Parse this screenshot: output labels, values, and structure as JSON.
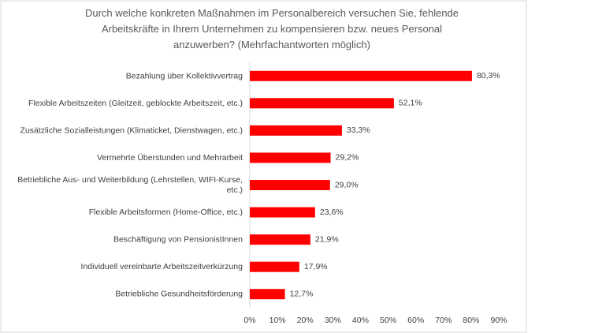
{
  "chart_data": {
    "type": "bar",
    "orientation": "horizontal",
    "title": "Durch welche konkreten Maßnahmen im Personalbereich versuchen Sie, fehlende Arbeitskräfte in Ihrem Unternehmen zu kompensieren bzw. neues Personal anzuwerben? (Mehrfachantworten möglich)",
    "categories": [
      "Bezahlung über Kollektivvertrag",
      "Flexible Arbeitszeiten (Gleitzeit, geblockte Arbeitszeit, etc.)",
      "Zusätzliche Sozialleistungen (Klimaticket, Dienstwagen, etc.)",
      "Vermehrte Überstunden und Mehrarbeit",
      "Betriebliche Aus- und Weiterbildung (Lehrstellen, WIFI-Kurse, etc.)",
      "Flexible Arbeitsformen (Home-Office, etc.)",
      "Beschäftigung von PensionistInnen",
      "Individuell vereinbarte Arbeitszeitverkürzung",
      "Betriebliche Gesundheitsförderung"
    ],
    "values": [
      80.3,
      52.1,
      33.3,
      29.2,
      29.0,
      23.6,
      21.9,
      17.9,
      12.7
    ],
    "value_labels": [
      "80,3%",
      "52,1%",
      "33,3%",
      "29,2%",
      "29,0%",
      "23,6%",
      "21,9%",
      "17,9%",
      "12,7%"
    ],
    "color": "#ff0000",
    "xlim": [
      0,
      90
    ],
    "xticks": [
      {
        "value": 0,
        "label": "0%"
      },
      {
        "value": 10,
        "label": "10%"
      },
      {
        "value": 20,
        "label": "20%"
      },
      {
        "value": 30,
        "label": "30%"
      },
      {
        "value": 40,
        "label": "40%"
      },
      {
        "value": 50,
        "label": "50%"
      },
      {
        "value": 60,
        "label": "60%"
      },
      {
        "value": 70,
        "label": "70%"
      },
      {
        "value": 80,
        "label": "80%"
      },
      {
        "value": 90,
        "label": "90%"
      }
    ],
    "grid": false
  }
}
